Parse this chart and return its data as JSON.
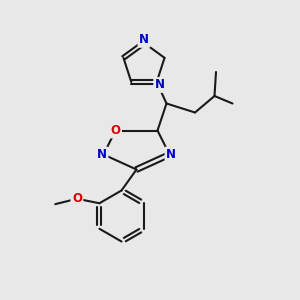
{
  "bg_color": "#e8e8e8",
  "bond_color": "#1a1a1a",
  "N_color": "#0000cc",
  "O_color": "#dd0000",
  "line_width": 1.5,
  "font_size": 8.5,
  "figsize": [
    3.0,
    3.0
  ],
  "dpi": 100,
  "xlim": [
    0,
    10
  ],
  "ylim": [
    0,
    10
  ]
}
